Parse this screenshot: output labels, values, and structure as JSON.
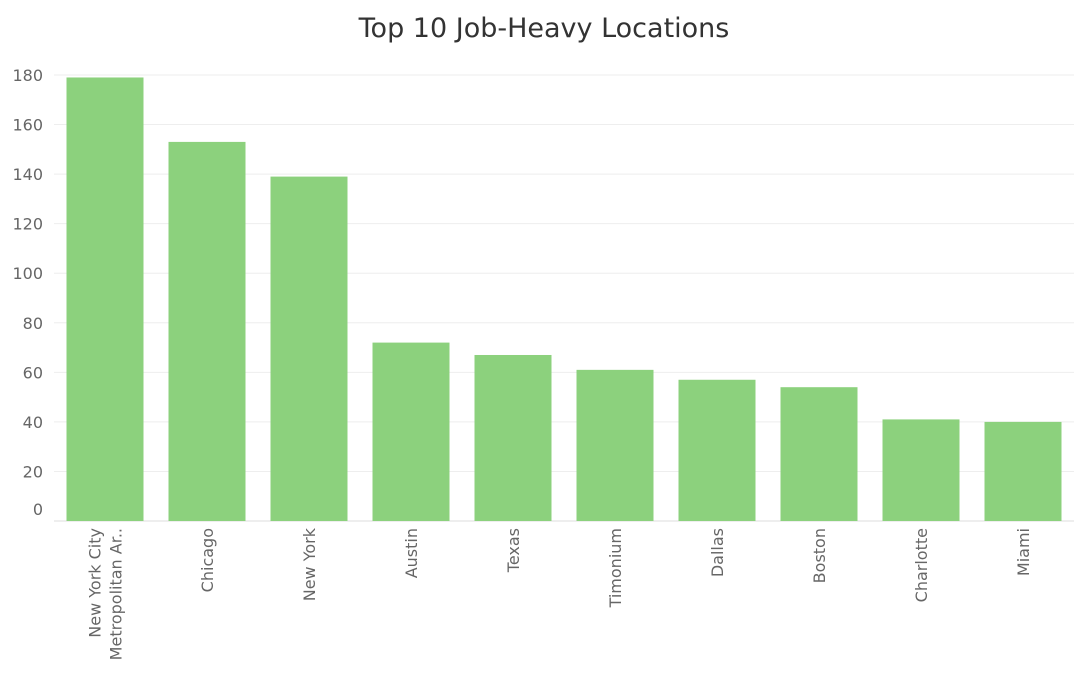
{
  "chart_data": {
    "type": "bar",
    "title": "Top 10 Job-Heavy Locations",
    "xlabel": "",
    "ylabel": "",
    "categories": [
      [
        "New York City",
        "Metropolitan Ar.."
      ],
      [
        "Chicago"
      ],
      [
        "New York"
      ],
      [
        "Austin"
      ],
      [
        "Texas"
      ],
      [
        "Timonium"
      ],
      [
        "Dallas"
      ],
      [
        "Boston"
      ],
      [
        "Charlotte"
      ],
      [
        "Miami"
      ]
    ],
    "values": [
      179,
      153,
      139,
      72,
      67,
      61,
      57,
      54,
      41,
      40
    ],
    "ylim": [
      0,
      180
    ],
    "yticks": [
      0,
      20,
      40,
      60,
      80,
      100,
      120,
      140,
      160,
      180
    ],
    "grid": true,
    "legend": "none",
    "colors": {
      "bar": "#8cd17d",
      "gridline": "#eeeeee",
      "text": "#666666",
      "title": "#333333"
    }
  }
}
